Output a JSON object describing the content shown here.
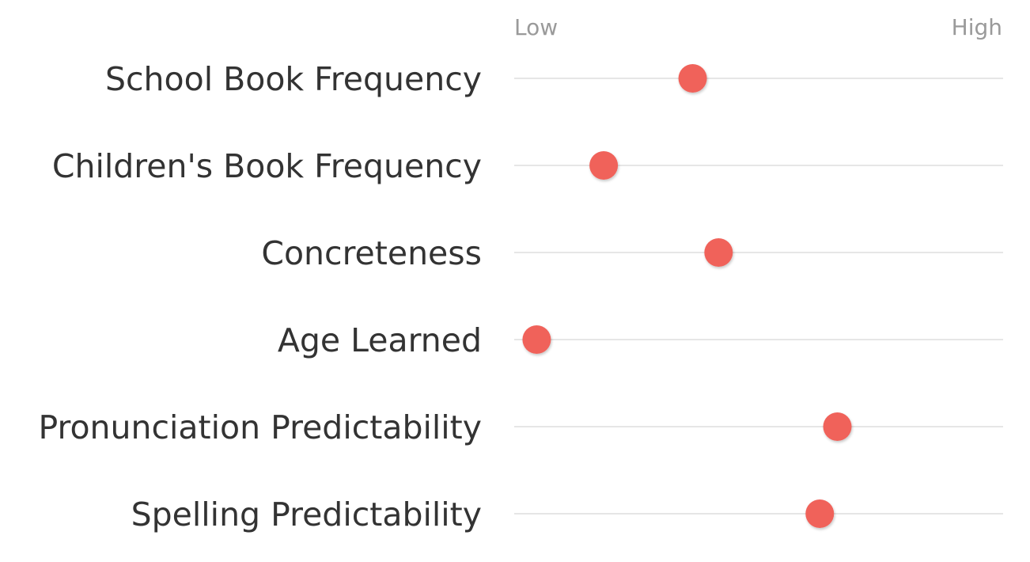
{
  "chart_data": {
    "type": "scatter",
    "scale": {
      "low_label": "Low",
      "high_label": "High"
    },
    "xlim": [
      0,
      1
    ],
    "categories": [
      "School Book Frequency",
      "Children's Book Frequency",
      "Concreteness",
      "Age Learned",
      "Pronunciation Predictability",
      "Spelling Predictability"
    ],
    "values": [
      0.365,
      0.183,
      0.418,
      0.046,
      0.661,
      0.625
    ],
    "colors": {
      "dot": "#f0625a",
      "track": "#d6d6d6",
      "label": "#333333",
      "scale_label": "#9a9a9a"
    },
    "grid": false
  }
}
